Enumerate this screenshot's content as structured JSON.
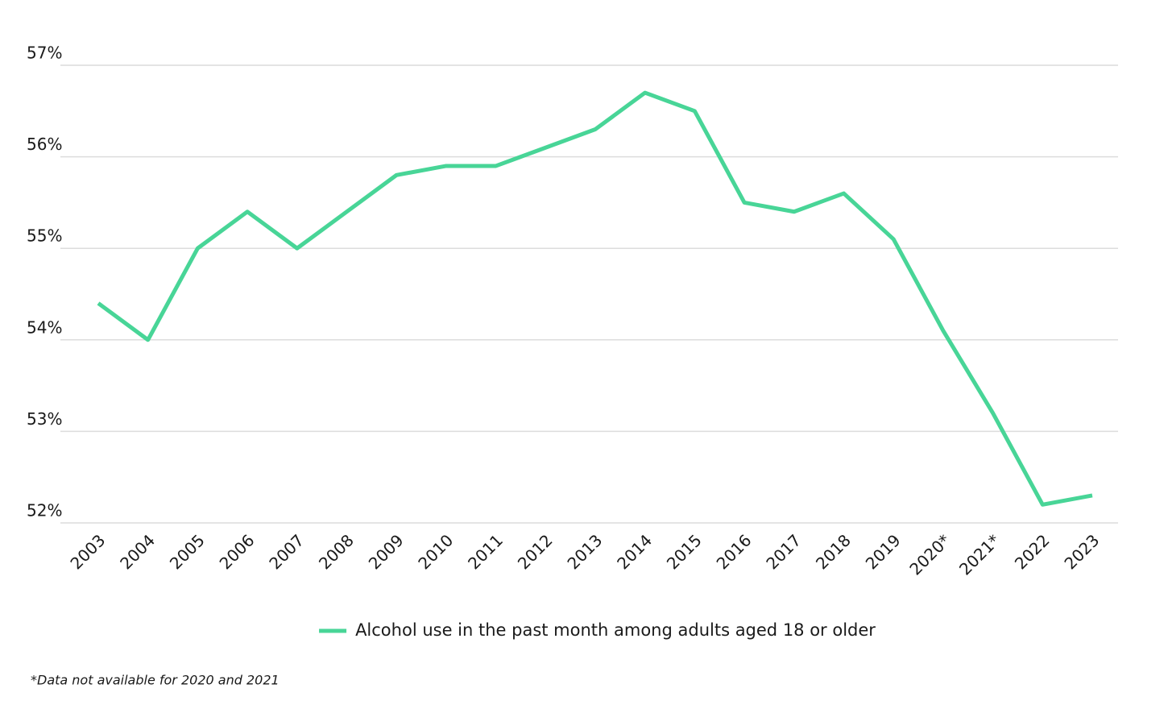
{
  "chart_data": {
    "type": "line",
    "categories": [
      "2003",
      "2004",
      "2005",
      "2006",
      "2007",
      "2008",
      "2009",
      "2010",
      "2011",
      "2012",
      "2013",
      "2014",
      "2015",
      "2016",
      "2017",
      "2018",
      "2019",
      "2020*",
      "2021*",
      "2022",
      "2023"
    ],
    "series": [
      {
        "name": "Alcohol use in the past month among adults aged 18 or older",
        "color": "#48d597",
        "values": [
          54.4,
          54.0,
          55.0,
          55.4,
          55.0,
          55.4,
          55.8,
          55.9,
          55.9,
          56.1,
          56.3,
          56.7,
          56.5,
          55.5,
          55.4,
          55.6,
          55.1,
          54.1,
          53.2,
          52.2,
          52.3
        ]
      }
    ],
    "ylim": [
      52,
      57
    ],
    "yticks": [
      {
        "value": 52,
        "label": "52%"
      },
      {
        "value": 53,
        "label": "53%"
      },
      {
        "value": 54,
        "label": "54%"
      },
      {
        "value": 55,
        "label": "55%"
      },
      {
        "value": 56,
        "label": "56%"
      },
      {
        "value": 57,
        "label": "57%"
      }
    ],
    "grid": true,
    "legend": "bottom",
    "footnote": "*Data not available for 2020 and 2021"
  }
}
